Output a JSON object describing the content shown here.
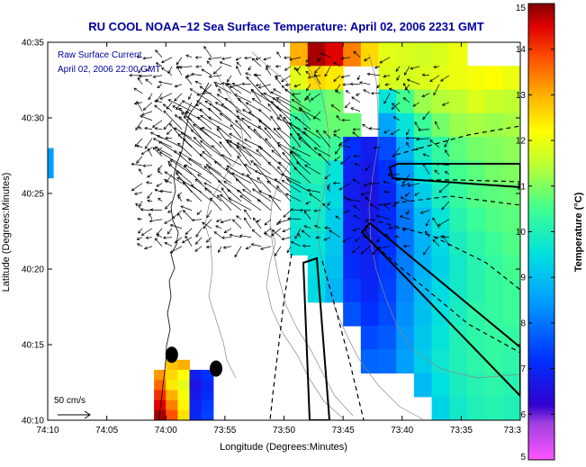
{
  "chart_data": {
    "type": "heatmap",
    "title": "RU COOL  NOAA−12  Sea Surface Temperature:  April 02, 2006 2231 GMT",
    "xlabel": "Longitude (Degrees:Minutes)",
    "ylabel": "Latitude (Degrees:Minutes)",
    "annotation_lines": [
      "Raw Surface Current",
      "April 02, 2006 22:00 GMT"
    ],
    "scale_label": "50 cm/s",
    "xlim": [
      -74.1667,
      -73.5
    ],
    "ylim": [
      40.1667,
      40.5833
    ],
    "x_ticks": [
      {
        "value": -74.1667,
        "label": "74:10"
      },
      {
        "value": -74.0833,
        "label": "74:05"
      },
      {
        "value": -74.0,
        "label": "74:00"
      },
      {
        "value": -73.9167,
        "label": "73:55"
      },
      {
        "value": -73.8333,
        "label": "73:50"
      },
      {
        "value": -73.75,
        "label": "73:45"
      },
      {
        "value": -73.6667,
        "label": "73:40"
      },
      {
        "value": -73.5833,
        "label": "73:35"
      },
      {
        "value": -73.5,
        "label": "73:3"
      }
    ],
    "y_ticks": [
      {
        "value": 40.1667,
        "label": "40:10"
      },
      {
        "value": 40.25,
        "label": "40:15"
      },
      {
        "value": 40.3333,
        "label": "40:20"
      },
      {
        "value": 40.4167,
        "label": "40:25"
      },
      {
        "value": 40.5,
        "label": "40:30"
      },
      {
        "value": 40.5833,
        "label": "40:35"
      }
    ],
    "colorbar": {
      "label": "Temperature (°C)",
      "range": [
        5,
        15
      ],
      "ticks": [
        5,
        6,
        7,
        8,
        9,
        10,
        11,
        12,
        13,
        14,
        15
      ],
      "colormap": "jet-with-magenta-low"
    },
    "sst_grid": {
      "lon_range": [
        -73.85,
        -73.5
      ],
      "lat_range": [
        40.1667,
        40.5833
      ],
      "ncols": 14,
      "nrows": 16,
      "no_data": null,
      "values": [
        [
          null,
          13.0,
          14.8,
          14.5,
          13.4,
          12.6,
          11.9,
          11.8,
          11.7,
          11.8,
          12.0,
          null,
          null,
          null
        ],
        [
          null,
          11.9,
          12.6,
          12.4,
          null,
          null,
          11.8,
          11.7,
          11.8,
          11.9,
          12.0,
          12.1,
          12.2,
          12.0
        ],
        [
          null,
          10.7,
          10.6,
          10.9,
          null,
          null,
          9.6,
          10.5,
          11.2,
          11.4,
          11.5,
          11.8,
          11.6,
          11.5
        ],
        [
          null,
          10.3,
          10.6,
          10.8,
          10.8,
          null,
          8.6,
          9.6,
          10.4,
          10.9,
          11.2,
          11.3,
          11.2,
          11.3
        ],
        [
          null,
          10.2,
          10.3,
          10.4,
          7.2,
          6.8,
          7.5,
          8.8,
          9.8,
          10.3,
          10.7,
          10.9,
          11.0,
          11.1
        ],
        [
          null,
          10.0,
          10.1,
          9.6,
          6.9,
          6.7,
          7.2,
          8.4,
          9.5,
          10.1,
          10.5,
          10.7,
          10.9,
          11.0
        ],
        [
          null,
          9.8,
          9.9,
          9.4,
          6.8,
          6.6,
          7.0,
          8.1,
          9.2,
          9.9,
          10.3,
          10.6,
          10.7,
          10.8
        ],
        [
          null,
          9.7,
          9.8,
          9.2,
          6.9,
          6.7,
          7.1,
          8.0,
          8.9,
          9.6,
          10.1,
          10.4,
          10.6,
          10.7
        ],
        [
          null,
          9.6,
          9.6,
          9.1,
          7.0,
          6.8,
          7.2,
          8.0,
          8.8,
          9.4,
          9.9,
          10.2,
          10.4,
          10.6
        ],
        [
          null,
          null,
          9.5,
          9.0,
          7.1,
          6.9,
          7.3,
          8.1,
          8.8,
          9.3,
          9.8,
          10.1,
          10.3,
          10.5
        ],
        [
          null,
          null,
          9.4,
          8.8,
          7.3,
          7.0,
          7.4,
          8.2,
          8.9,
          9.4,
          9.8,
          10.1,
          10.3,
          10.4
        ],
        [
          null,
          null,
          null,
          null,
          7.6,
          7.2,
          7.5,
          8.3,
          9.0,
          9.5,
          9.9,
          10.2,
          10.3,
          10.4
        ],
        [
          null,
          null,
          null,
          null,
          null,
          7.5,
          7.7,
          8.4,
          9.1,
          9.6,
          10.0,
          10.2,
          10.3,
          10.3
        ],
        [
          null,
          null,
          null,
          null,
          null,
          7.8,
          7.9,
          8.5,
          9.2,
          9.7,
          10.0,
          10.2,
          10.3,
          10.2
        ],
        [
          null,
          null,
          null,
          null,
          null,
          null,
          null,
          null,
          8.9,
          9.5,
          9.9,
          10.1,
          10.2,
          10.1
        ],
        [
          null,
          null,
          null,
          null,
          null,
          null,
          null,
          null,
          null,
          9.3,
          9.8,
          10.0,
          10.1,
          10.0
        ]
      ]
    },
    "sw_sst_patch": {
      "lon_range": [
        -74.0167,
        -73.9333
      ],
      "lat_range": [
        40.1667,
        40.2333
      ],
      "ncols": 5,
      "nrows": 6,
      "values": [
        [
          null,
          12.8,
          13.0,
          null,
          null
        ],
        [
          13.2,
          12.6,
          12.2,
          6.8,
          7.2
        ],
        [
          13.6,
          12.4,
          11.9,
          6.6,
          7.0
        ],
        [
          14.1,
          13.0,
          12.1,
          6.7,
          7.1
        ],
        [
          14.5,
          13.4,
          12.3,
          6.9,
          7.3
        ],
        [
          14.8,
          13.8,
          12.5,
          7.0,
          7.4
        ]
      ]
    },
    "left_edge_patch": {
      "lon_range": [
        -74.1667,
        -74.1583
      ],
      "lat_range": [
        40.4333,
        40.4667
      ],
      "value": 8.5
    },
    "markers": [
      {
        "lon": -73.9917,
        "lat": 40.2389
      },
      {
        "lon": -73.9292,
        "lat": 40.2236
      }
    ],
    "current_vector_field": {
      "region_lon": [
        -74.0333,
        -73.6
      ],
      "region_lat": [
        40.35,
        40.5667
      ],
      "dominant_direction": "toward shore (west-northwest)",
      "rendering": "schematic"
    }
  }
}
